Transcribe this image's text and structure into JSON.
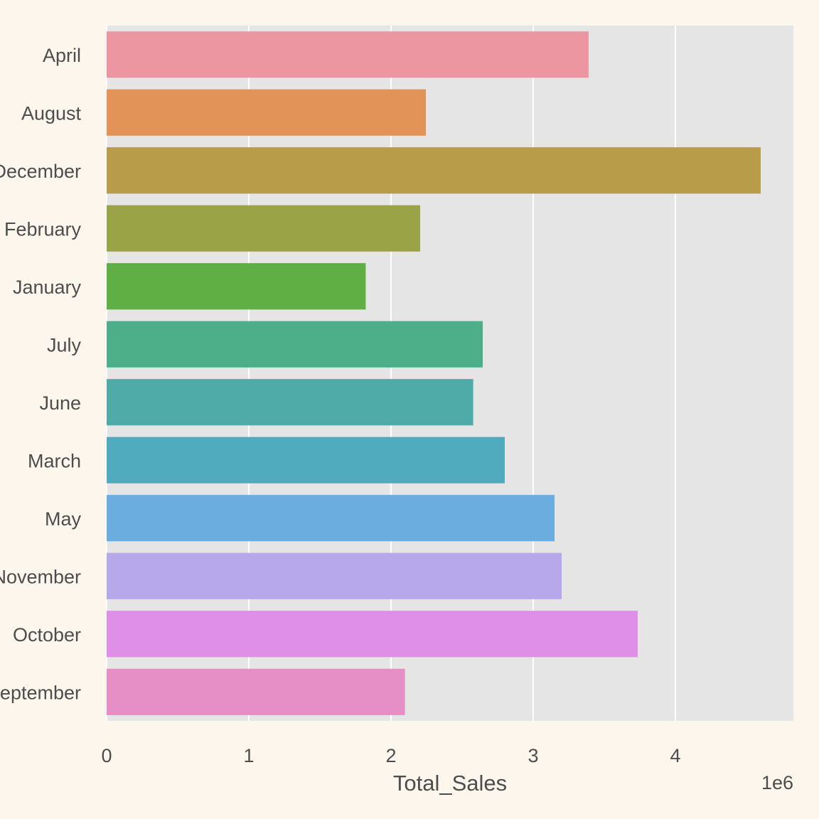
{
  "chart_data": {
    "type": "bar",
    "orientation": "horizontal",
    "categories": [
      "April",
      "August",
      "December",
      "February",
      "January",
      "July",
      "June",
      "March",
      "May",
      "November",
      "October",
      "September"
    ],
    "values": [
      3390000,
      2245000,
      4600000,
      2205000,
      1822000,
      2645000,
      2578000,
      2800000,
      3150000,
      3200000,
      3735000,
      2098000
    ],
    "xlabel": "Total_Sales",
    "ylabel": "",
    "xlim": [
      0,
      4830000
    ],
    "x_ticks": [
      0,
      1,
      2,
      3,
      4
    ],
    "x_tick_scale": 1000000,
    "offset_text": "1e6",
    "grid": true,
    "colors": [
      "#ec96a1",
      "#e29357",
      "#b89c4a",
      "#9aa447",
      "#5faf45",
      "#4caf8a",
      "#4eaba7",
      "#50abbe",
      "#6badde",
      "#b7a7eb",
      "#df8fe8",
      "#e68fc7"
    ],
    "background": "#fdf6ec",
    "plot_background": "#e5e5e5"
  }
}
